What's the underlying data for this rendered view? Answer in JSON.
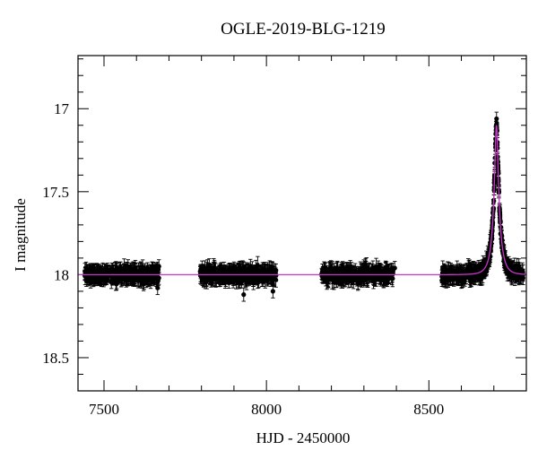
{
  "chart_data": {
    "type": "scatter",
    "title": "OGLE-2019-BLG-1219",
    "xlabel": "HJD - 2450000",
    "ylabel": "I magnitude",
    "xlim": [
      7420,
      8800
    ],
    "ylim": [
      18.7,
      16.68
    ],
    "y_inverted": true,
    "grid": false,
    "legend": "none",
    "xticks": [
      "7500",
      "8000",
      "8500"
    ],
    "yticks": [
      "17",
      "17.5",
      "18",
      "18.5"
    ],
    "xtick_values": [
      7500,
      8000,
      8500
    ],
    "ytick_values": [
      17,
      17.5,
      18,
      18.5
    ],
    "colors": {
      "points": "#000000",
      "model": "#cc33cc"
    },
    "series": [
      {
        "kind": "observations",
        "seasons": [
          {
            "start": 7440,
            "end": 7670,
            "mean_mag": 18.0,
            "scatter_mag": 0.05
          },
          {
            "start": 7795,
            "end": 8030,
            "mean_mag": 18.0,
            "scatter_mag": 0.05
          },
          {
            "start": 8170,
            "end": 8390,
            "mean_mag": 18.0,
            "scatter_mag": 0.05
          },
          {
            "start": 8540,
            "end": 8790,
            "mean_mag": 18.0,
            "scatter_mag": 0.05
          }
        ],
        "extra_points": [
          {
            "x": 7669,
            "y": 17.95
          },
          {
            "x": 7665,
            "y": 18.08
          },
          {
            "x": 7960,
            "y": 18.05
          },
          {
            "x": 8020,
            "y": 18.1
          },
          {
            "x": 7930,
            "y": 18.12
          },
          {
            "x": 8395,
            "y": 17.96
          },
          {
            "x": 8790,
            "y": 18.02
          },
          {
            "x": 8775,
            "y": 18.0
          }
        ]
      },
      {
        "kind": "model",
        "baseline_mag": 18.0,
        "peak_time": 8708,
        "peak_mag": 17.1,
        "t_E": 22,
        "u0": 0.22
      }
    ]
  }
}
